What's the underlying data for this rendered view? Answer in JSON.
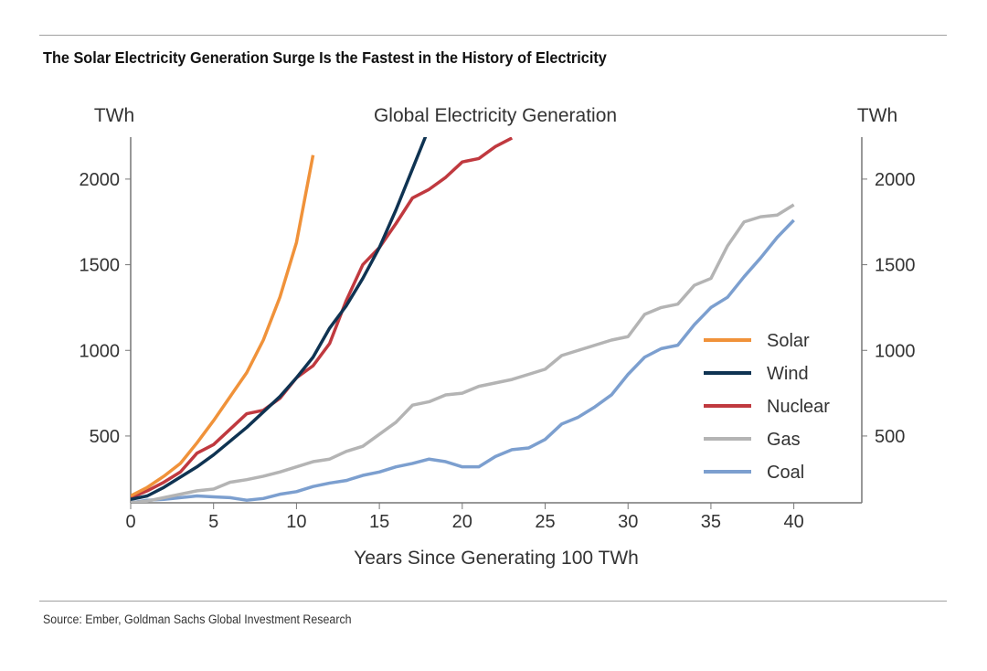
{
  "title": "The Solar Electricity Generation Surge Is the Fastest in the History of Electricity",
  "source": "Source: Ember, Goldman Sachs Global Investment Research",
  "chart_data": {
    "type": "line",
    "title": "Global Electricity Generation",
    "xlabel": "Years Since Generating 100 TWh",
    "ylabel_left": "TWh",
    "ylabel_right": "TWh",
    "xlim": [
      0,
      44.1
    ],
    "ylim": [
      110,
      2245
    ],
    "xticks": [
      0,
      5,
      10,
      15,
      20,
      25,
      30,
      35,
      40
    ],
    "yticks": [
      500,
      1000,
      1500,
      2000
    ],
    "legend_position": "right",
    "series": [
      {
        "name": "Solar",
        "color": "#f0923a",
        "values": [
          150,
          200,
          265,
          340,
          460,
          590,
          730,
          870,
          1060,
          1310,
          1630,
          2140
        ]
      },
      {
        "name": "Wind",
        "color": "#0f3352",
        "values": [
          130,
          150,
          200,
          260,
          320,
          390,
          470,
          550,
          640,
          730,
          840,
          960,
          1130,
          1260,
          1420,
          1600,
          1820,
          2060,
          2300
        ]
      },
      {
        "name": "Nuclear",
        "color": "#c0393f",
        "values": [
          140,
          180,
          230,
          290,
          400,
          450,
          540,
          630,
          650,
          720,
          840,
          910,
          1040,
          1290,
          1500,
          1600,
          1740,
          1890,
          1940,
          2010,
          2100,
          2120,
          2190,
          2240
        ]
      },
      {
        "name": "Gas",
        "color": "#b4b4b4",
        "values": [
          110,
          120,
          140,
          160,
          180,
          190,
          230,
          245,
          265,
          290,
          320,
          350,
          365,
          410,
          440,
          510,
          580,
          680,
          700,
          740,
          750,
          790,
          810,
          830,
          860,
          890,
          970,
          1000,
          1030,
          1060,
          1080,
          1210,
          1250,
          1270,
          1380,
          1420,
          1610,
          1750,
          1780,
          1790,
          1850
        ]
      },
      {
        "name": "Coal",
        "color": "#7c9fcf",
        "values": [
          110,
          125,
          130,
          140,
          150,
          145,
          140,
          125,
          135,
          160,
          175,
          205,
          225,
          240,
          270,
          290,
          320,
          340,
          365,
          350,
          320,
          320,
          380,
          420,
          430,
          480,
          570,
          610,
          670,
          740,
          860,
          960,
          1010,
          1030,
          1150,
          1250,
          1310,
          1430,
          1540,
          1660,
          1760
        ]
      }
    ]
  }
}
